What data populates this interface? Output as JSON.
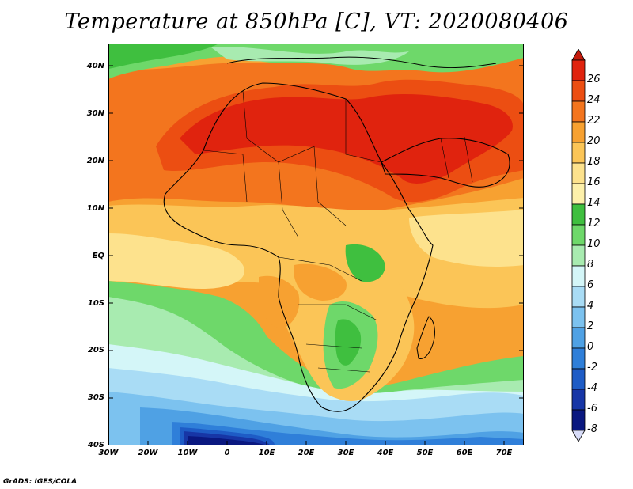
{
  "title": "Temperature at 850hPa [C], VT: 2020080406",
  "y_axis": [
    "40N",
    "30N",
    "20N",
    "10N",
    "EQ",
    "10S",
    "20S",
    "30S",
    "40S"
  ],
  "x_axis": [
    "30W",
    "20W",
    "10W",
    "0",
    "10E",
    "20E",
    "30E",
    "40E",
    "50E",
    "60E",
    "70E"
  ],
  "colorbar": {
    "labels": [
      "26",
      "24",
      "22",
      "20",
      "18",
      "16",
      "14",
      "12",
      "10",
      "8",
      "6",
      "4",
      "2",
      "0",
      "-2",
      "-4",
      "-6",
      "-8"
    ],
    "colors": [
      "#e0230e",
      "#ec4e12",
      "#f3751e",
      "#f7a131",
      "#fbc557",
      "#fde28d",
      "#fdf0aa",
      "#3fbf3f",
      "#6ed86a",
      "#a8ebb0",
      "#d4f6f8",
      "#a9dcf5",
      "#7cc2ef",
      "#4fa1e4",
      "#2f7fd9",
      "#1e5cc6",
      "#1736a6",
      "#0a1880"
    ],
    "top_arrow_color": "#c41a0c",
    "bottom_arrow_color": "#d8dcf8"
  },
  "credit": "GrADS: IGES/COLA"
}
